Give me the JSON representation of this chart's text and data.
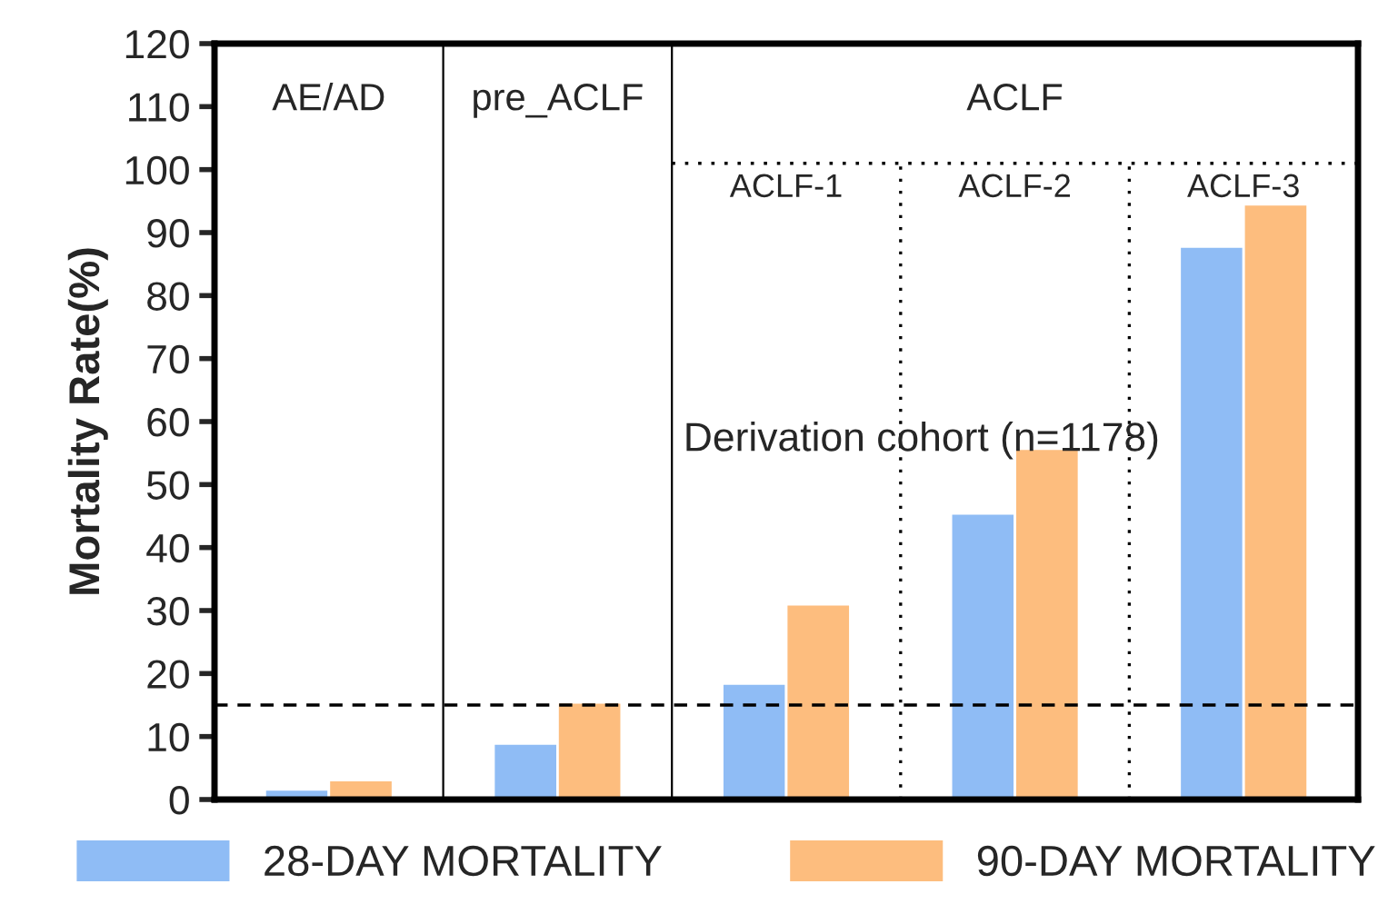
{
  "chart_data": {
    "type": "bar",
    "ylabel": "Mortality Rate(%)",
    "categories": [
      "AE/AD",
      "pre_ACLF",
      "ACLF-1",
      "ACLF-2",
      "ACLF-3"
    ],
    "series": [
      {
        "name": "28-DAY MORTALITY",
        "color": "#8fbcf5",
        "values": [
          1.6,
          8.9,
          18.4,
          45.4,
          87.8
        ]
      },
      {
        "name": "90-DAY MORTALITY",
        "color": "#fdbd7e",
        "values": [
          3.1,
          15.4,
          31.0,
          55.7,
          94.5
        ]
      }
    ],
    "ylim": [
      0,
      120
    ],
    "yticks": [
      0,
      10,
      20,
      30,
      40,
      50,
      60,
      70,
      80,
      90,
      100,
      110,
      120
    ],
    "ref_lines": [
      {
        "axis": "y",
        "value": 15,
        "line_style": "dashed",
        "color": "#000000"
      },
      {
        "axis": "y",
        "value": 101,
        "line_style": "dotted",
        "color": "#000000"
      }
    ],
    "annotations": [
      "ACLF",
      "Derivation cohort (n=1178)"
    ],
    "grid": false,
    "legend": "bottom"
  }
}
